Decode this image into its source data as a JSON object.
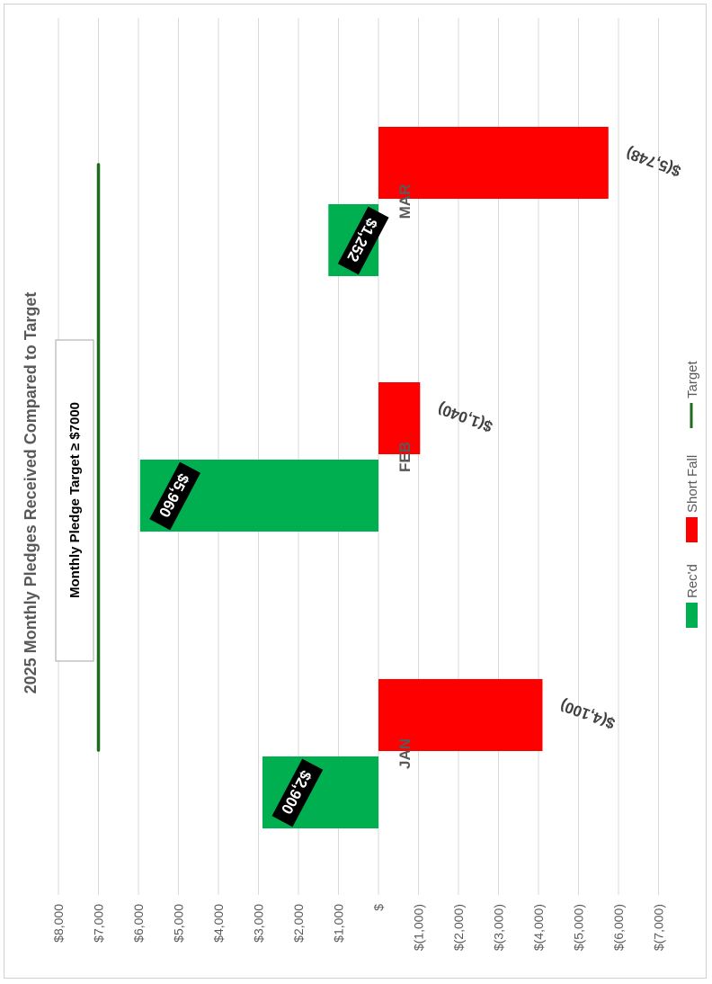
{
  "chart_data": {
    "type": "bar",
    "title": "2025 Monthly Pledges Received Compared to Target",
    "categories": [
      "JAN",
      "FEB",
      "MAR"
    ],
    "series": [
      {
        "name": "Rec'd",
        "color": "#00B050",
        "values": [
          2900,
          5960,
          1252
        ],
        "labels": [
          "$2,900",
          "$5,960",
          "$1,252"
        ]
      },
      {
        "name": "Short Fall",
        "color": "#FF0000",
        "values": [
          -4100,
          -1040,
          -5748
        ],
        "labels": [
          "$(4,100)",
          "$(1,040)",
          "$(5,748)"
        ]
      },
      {
        "name": "Target",
        "color": "#1E6B1E",
        "type": "line",
        "values": [
          7000,
          7000,
          7000
        ]
      }
    ],
    "ylim": [
      -7000,
      8000
    ],
    "tick_step": 1000,
    "tick_labels": [
      "$8,000",
      "$7,000",
      "$6,000",
      "$5,000",
      "$4,000",
      "$3,000",
      "$2,000",
      "$1,000",
      "$",
      "$(1,000)",
      "$(2,000)",
      "$(3,000)",
      "$(4,000)",
      "$(5,000)",
      "$(6,000)",
      "$(7,000)"
    ],
    "annotation": "Monthly Pledge Target ≥ $7000",
    "grid": true,
    "legend_position": "bottom",
    "orientation": "rotated 90° clockwise"
  }
}
